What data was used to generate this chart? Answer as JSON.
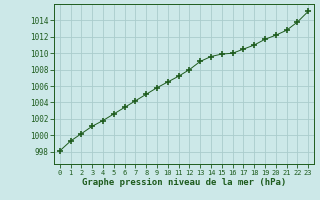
{
  "x": [
    0,
    1,
    2,
    3,
    4,
    5,
    6,
    7,
    8,
    9,
    10,
    11,
    12,
    13,
    14,
    15,
    16,
    17,
    18,
    19,
    20,
    21,
    22,
    23
  ],
  "y": [
    998.1,
    999.3,
    1000.2,
    1001.1,
    1001.8,
    1002.6,
    1003.4,
    1004.2,
    1005.0,
    1005.8,
    1006.5,
    1007.2,
    1008.0,
    1009.0,
    1009.6,
    1009.9,
    1010.0,
    1010.5,
    1011.0,
    1011.7,
    1012.2,
    1012.8,
    1013.8,
    1015.1
  ],
  "line_color": "#1e5c1e",
  "marker": "+",
  "marker_size": 4,
  "marker_linewidth": 1.2,
  "bg_color": "#cce8e8",
  "grid_color": "#aacccc",
  "xlabel": "Graphe pression niveau de la mer (hPa)",
  "xlabel_color": "#1e5c1e",
  "xlabel_fontsize": 6.5,
  "tick_color": "#1e5c1e",
  "ytick_fontsize": 5.5,
  "xtick_fontsize": 5.0,
  "ylim": [
    996.5,
    1016.0
  ],
  "xlim": [
    -0.5,
    23.5
  ],
  "yticks": [
    998,
    1000,
    1002,
    1004,
    1006,
    1008,
    1010,
    1012,
    1014
  ],
  "xticks": [
    0,
    1,
    2,
    3,
    4,
    5,
    6,
    7,
    8,
    9,
    10,
    11,
    12,
    13,
    14,
    15,
    16,
    17,
    18,
    19,
    20,
    21,
    22,
    23
  ],
  "linewidth": 0.7
}
